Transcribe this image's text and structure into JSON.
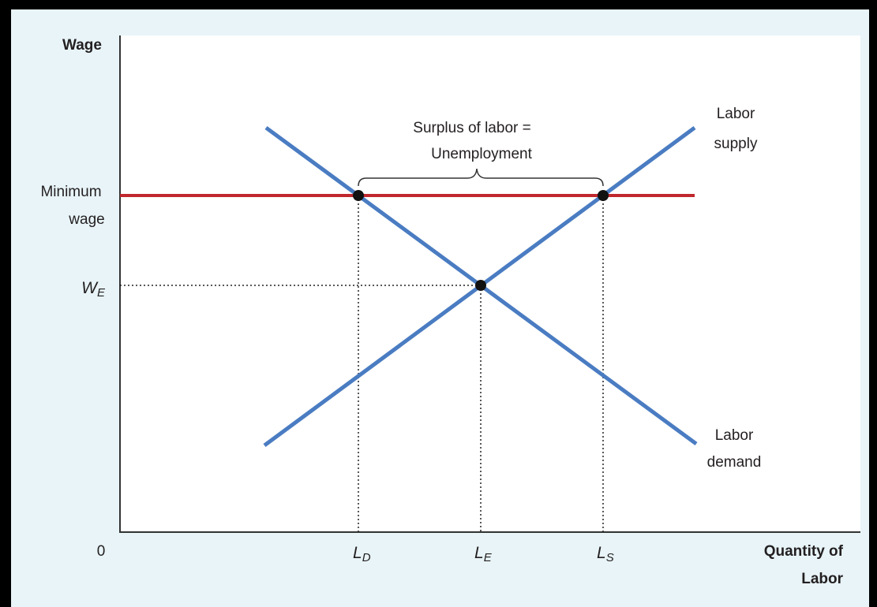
{
  "axes": {
    "y_label": "Wage",
    "x_label": [
      "Quantity of",
      "Labor"
    ],
    "origin": "0"
  },
  "annotation": [
    "Surplus of labor =",
    "Unemployment"
  ],
  "curves": {
    "supply": [
      "Labor",
      "supply"
    ],
    "demand": [
      "Labor",
      "demand"
    ],
    "minimum_wage": [
      "Minimum",
      "wage"
    ]
  },
  "ticks": {
    "y": {
      "main": "W",
      "sub": "E"
    },
    "x": [
      {
        "main": "L",
        "sub": "D"
      },
      {
        "main": "L",
        "sub": "E"
      },
      {
        "main": "L",
        "sub": "S"
      }
    ]
  }
}
